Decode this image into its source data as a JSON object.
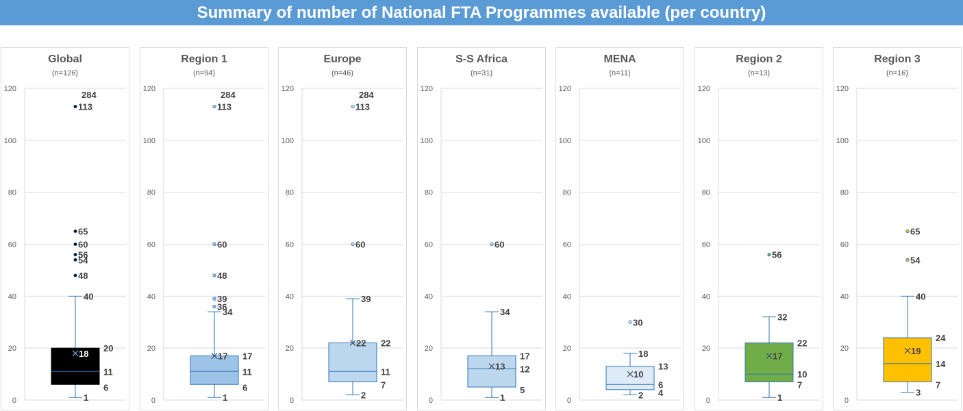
{
  "title": "Summary of number of National FTA Programmes available (per country)",
  "chart_data": {
    "type": "box",
    "ylim": [
      0,
      120
    ],
    "yticks": [
      0,
      20,
      40,
      60,
      80,
      100,
      120
    ],
    "grid": true,
    "panels": [
      {
        "name": "Global",
        "n": "(n=126)",
        "min": 1,
        "q1": 6,
        "median": 11,
        "q3": 20,
        "max": 40,
        "mean": 18,
        "outliers": [
          48,
          54,
          56,
          60,
          65,
          113
        ],
        "offscale": [
          284
        ],
        "fill": "#000000",
        "stroke": "#000000",
        "outlier_color": "#000000"
      },
      {
        "name": "Region 1",
        "n": "(n=94)",
        "min": 1,
        "q1": 6,
        "median": 11,
        "q3": 17,
        "max": 34,
        "mean": 17,
        "outliers": [
          36,
          39,
          48,
          60,
          113
        ],
        "offscale": [
          284
        ],
        "fill": "#9dc3e6",
        "stroke": "#2e75b6",
        "outlier_color": "#9dc3e6"
      },
      {
        "name": "Europe",
        "n": "(n=46)",
        "min": 2,
        "q1": 7,
        "median": 11,
        "q3": 22,
        "max": 39,
        "mean": 22,
        "outliers": [
          60,
          113
        ],
        "offscale": [
          284
        ],
        "fill": "#bdd7ee",
        "stroke": "#2e75b6",
        "outlier_color": "#bdd7ee"
      },
      {
        "name": "S-S Africa",
        "n": "(n=31)",
        "min": 1,
        "q1": 5,
        "median": 12,
        "q3": 17,
        "max": 34,
        "mean": 13,
        "outliers": [
          60
        ],
        "offscale": [],
        "fill": "#bdd7ee",
        "stroke": "#2e75b6",
        "outlier_color": "#bdd7ee"
      },
      {
        "name": "MENA",
        "n": "(n=11)",
        "min": 2,
        "q1": 4,
        "median": 6,
        "q3": 13,
        "max": 18,
        "mean": 10,
        "outliers": [
          30
        ],
        "offscale": [],
        "fill": "#deebf7",
        "stroke": "#2e75b6",
        "outlier_color": "#deebf7"
      },
      {
        "name": "Region 2",
        "n": "(n=13)",
        "min": 1,
        "q1": 7,
        "median": 10,
        "q3": 22,
        "max": 32,
        "mean": 17,
        "outliers": [
          56
        ],
        "offscale": [],
        "fill": "#70ad47",
        "stroke": "#2e75b6",
        "outlier_color": "#70ad47"
      },
      {
        "name": "Region 3",
        "n": "(n=16)",
        "min": 3,
        "q1": 7,
        "median": 14,
        "q3": 24,
        "max": 40,
        "mean": 19,
        "outliers": [
          54,
          65
        ],
        "offscale": [],
        "fill": "#ffc000",
        "stroke": "#2e75b6",
        "outlier_color": "#ffc000"
      }
    ]
  }
}
